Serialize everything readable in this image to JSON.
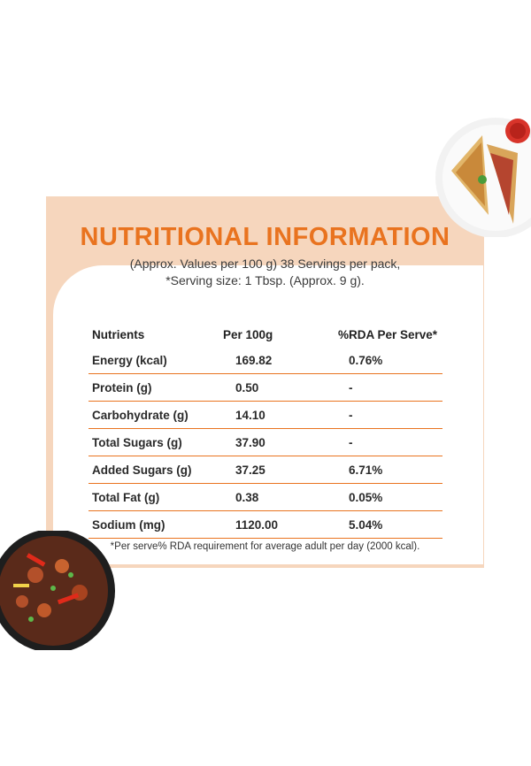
{
  "title": "NUTRITIONAL INFORMATION",
  "subtitle_line1": "(Approx. Values per 100 g) 38 Servings per pack,",
  "subtitle_line2": "*Serving size: 1 Tbsp. (Approx. 9 g).",
  "table": {
    "headers": [
      "Nutrients",
      "Per 100g",
      "%RDA Per Serve*"
    ],
    "rows": [
      [
        "Energy (kcal)",
        "169.82",
        "0.76%"
      ],
      [
        "Protein (g)",
        "0.50",
        "-"
      ],
      [
        "Carbohydrate (g)",
        "14.10",
        "-"
      ],
      [
        "Total Sugars (g)",
        "37.90",
        "-"
      ],
      [
        "Added Sugars (g)",
        "37.25",
        "6.71%"
      ],
      [
        "Total Fat (g)",
        "0.38",
        "0.05%"
      ],
      [
        "Sodium (mg)",
        "1120.00",
        "5.04%"
      ]
    ]
  },
  "footnote": "*Per serve% RDA requirement for average adult per day (2000 kcal).",
  "colors": {
    "accent": "#e9731f",
    "panel": "#f6d6bd"
  }
}
